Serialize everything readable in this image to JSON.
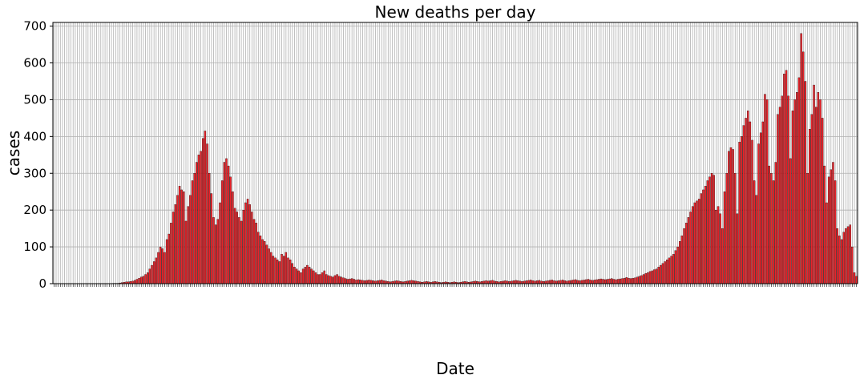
{
  "chart_data": {
    "type": "bar",
    "title": "New deaths per day",
    "xlabel": "Date",
    "ylabel": "cases",
    "ylim": [
      0,
      710
    ],
    "yticks": [
      0,
      100,
      200,
      300,
      400,
      500,
      600,
      700
    ],
    "grid": true,
    "bar_color": "#e8232a",
    "values": [
      0,
      0,
      0,
      0,
      0,
      0,
      0,
      0,
      0,
      0,
      0,
      0,
      0,
      0,
      0,
      0,
      0,
      0,
      0,
      0,
      0,
      0,
      0,
      0,
      0,
      0,
      0,
      0,
      1,
      1,
      1,
      2,
      3,
      4,
      5,
      5,
      6,
      7,
      9,
      12,
      15,
      18,
      20,
      25,
      30,
      40,
      50,
      60,
      70,
      85,
      100,
      95,
      85,
      120,
      135,
      165,
      195,
      215,
      240,
      265,
      255,
      250,
      170,
      210,
      240,
      280,
      300,
      330,
      350,
      360,
      395,
      415,
      380,
      300,
      245,
      180,
      160,
      175,
      220,
      280,
      330,
      340,
      320,
      290,
      250,
      205,
      195,
      180,
      170,
      200,
      220,
      230,
      215,
      195,
      175,
      165,
      140,
      130,
      120,
      115,
      105,
      95,
      85,
      75,
      70,
      65,
      60,
      80,
      75,
      85,
      70,
      65,
      55,
      45,
      40,
      35,
      30,
      40,
      45,
      50,
      45,
      40,
      35,
      30,
      25,
      25,
      30,
      35,
      25,
      22,
      20,
      18,
      22,
      25,
      20,
      18,
      16,
      14,
      12,
      13,
      14,
      12,
      10,
      11,
      10,
      9,
      8,
      9,
      10,
      9,
      8,
      7,
      8,
      9,
      10,
      8,
      7,
      6,
      5,
      6,
      7,
      8,
      7,
      6,
      5,
      6,
      7,
      8,
      9,
      8,
      7,
      6,
      5,
      4,
      5,
      6,
      5,
      4,
      5,
      6,
      5,
      4,
      3,
      4,
      5,
      4,
      3,
      4,
      5,
      4,
      3,
      4,
      5,
      6,
      5,
      4,
      5,
      6,
      7,
      6,
      5,
      6,
      7,
      8,
      7,
      8,
      9,
      7,
      6,
      5,
      6,
      7,
      8,
      7,
      6,
      7,
      8,
      9,
      8,
      7,
      6,
      7,
      8,
      9,
      10,
      8,
      7,
      8,
      9,
      7,
      6,
      7,
      8,
      9,
      10,
      8,
      7,
      8,
      9,
      10,
      8,
      7,
      8,
      9,
      10,
      11,
      9,
      8,
      9,
      10,
      11,
      12,
      10,
      9,
      10,
      11,
      12,
      13,
      12,
      11,
      12,
      13,
      14,
      12,
      11,
      12,
      13,
      14,
      15,
      17,
      15,
      14,
      15,
      16,
      18,
      20,
      22,
      25,
      28,
      30,
      33,
      35,
      38,
      40,
      45,
      50,
      55,
      60,
      65,
      70,
      75,
      80,
      90,
      100,
      115,
      130,
      150,
      165,
      180,
      195,
      210,
      220,
      225,
      230,
      245,
      255,
      265,
      280,
      290,
      300,
      295,
      200,
      210,
      190,
      150,
      250,
      300,
      360,
      370,
      365,
      300,
      190,
      385,
      400,
      430,
      450,
      470,
      440,
      390,
      280,
      240,
      380,
      410,
      440,
      515,
      500,
      320,
      300,
      280,
      330,
      460,
      480,
      510,
      570,
      580,
      510,
      340,
      470,
      500,
      520,
      560,
      680,
      630,
      550,
      300,
      420,
      460,
      540,
      480,
      520,
      500,
      450,
      320,
      220,
      290,
      310,
      330,
      280,
      150,
      130,
      120,
      140,
      150,
      155,
      160,
      100,
      30,
      20
    ]
  }
}
